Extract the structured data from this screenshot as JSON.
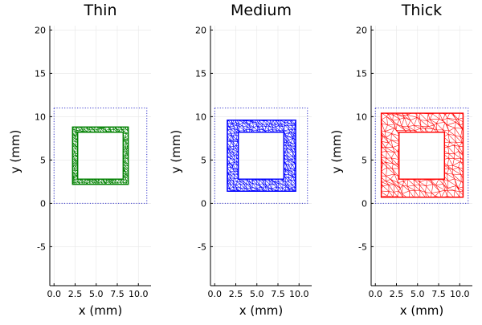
{
  "chart_data": [
    {
      "type": "mesh",
      "title": "Thin",
      "xlabel": "x (mm)",
      "ylabel": "y (mm)",
      "xlim": [
        -0.5,
        11.5
      ],
      "ylim": [
        -9.5,
        20.5
      ],
      "xticks": [
        0.0,
        2.5,
        5.0,
        7.5,
        10.0
      ],
      "xtick_labels": [
        "0.0",
        "2.5",
        "5.0",
        "7.5",
        "10.0"
      ],
      "yticks": [
        -5,
        0,
        5,
        10,
        15,
        20
      ],
      "ytick_labels": [
        "-5",
        "0",
        "5",
        "10",
        "15",
        "20"
      ],
      "grid": true,
      "legend": false,
      "boundary_box": {
        "x": [
          0,
          11
        ],
        "y": [
          0,
          11
        ],
        "style": "dotted",
        "color": "#3333cc"
      },
      "outer_square": {
        "x": [
          2.2,
          8.8
        ],
        "y": [
          2.2,
          8.8
        ]
      },
      "inner_square": {
        "x": [
          2.8,
          8.2
        ],
        "y": [
          2.8,
          8.2
        ]
      },
      "color": "#008000"
    },
    {
      "type": "mesh",
      "title": "Medium",
      "xlabel": "x (mm)",
      "ylabel": "y (mm)",
      "xlim": [
        -0.5,
        11.5
      ],
      "ylim": [
        -9.5,
        20.5
      ],
      "xticks": [
        0.0,
        2.5,
        5.0,
        7.5,
        10.0
      ],
      "xtick_labels": [
        "0.0",
        "2.5",
        "5.0",
        "7.5",
        "10.0"
      ],
      "yticks": [
        -5,
        0,
        5,
        10,
        15,
        20
      ],
      "ytick_labels": [
        "-5",
        "0",
        "5",
        "10",
        "15",
        "20"
      ],
      "grid": true,
      "legend": false,
      "boundary_box": {
        "x": [
          0,
          11
        ],
        "y": [
          0,
          11
        ],
        "style": "dotted",
        "color": "#3333cc"
      },
      "outer_square": {
        "x": [
          1.5,
          9.6
        ],
        "y": [
          1.4,
          9.6
        ]
      },
      "inner_square": {
        "x": [
          2.8,
          8.2
        ],
        "y": [
          2.8,
          8.2
        ]
      },
      "color": "#0000ff"
    },
    {
      "type": "mesh",
      "title": "Thick",
      "xlabel": "x (mm)",
      "ylabel": "y (mm)",
      "xlim": [
        -0.5,
        11.5
      ],
      "ylim": [
        -9.5,
        20.5
      ],
      "xticks": [
        0.0,
        2.5,
        5.0,
        7.5,
        10.0
      ],
      "xtick_labels": [
        "0.0",
        "2.5",
        "5.0",
        "7.5",
        "10.0"
      ],
      "yticks": [
        -5,
        0,
        5,
        10,
        15,
        20
      ],
      "ytick_labels": [
        "-5",
        "0",
        "5",
        "10",
        "15",
        "20"
      ],
      "grid": true,
      "legend": false,
      "boundary_box": {
        "x": [
          0,
          11
        ],
        "y": [
          0,
          11
        ],
        "style": "dotted",
        "color": "#3333cc"
      },
      "outer_square": {
        "x": [
          0.7,
          10.4
        ],
        "y": [
          0.7,
          10.4
        ]
      },
      "inner_square": {
        "x": [
          2.8,
          8.2
        ],
        "y": [
          2.8,
          8.2
        ]
      },
      "color": "#ff0000"
    }
  ]
}
